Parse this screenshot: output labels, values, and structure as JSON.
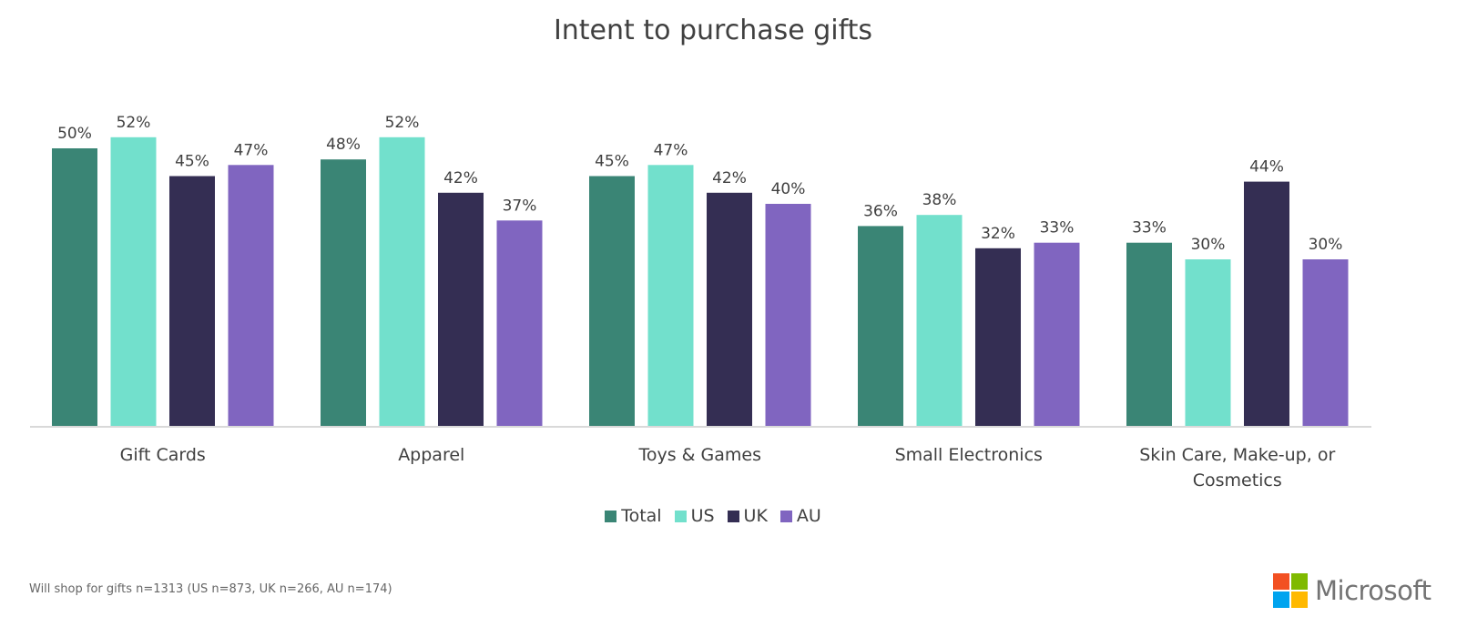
{
  "chart_data": {
    "type": "bar",
    "title": "Intent to purchase gifts",
    "xlabel": "",
    "ylabel": "",
    "ylim": [
      0,
      52
    ],
    "grid": false,
    "legend_position": "bottom-center",
    "categories": [
      "Gift Cards",
      "Apparel",
      "Toys & Games",
      "Small Electronics",
      "Skin Care, Make-up, or Cosmetics"
    ],
    "category_lines": [
      [
        "Gift Cards"
      ],
      [
        "Apparel"
      ],
      [
        "Toys & Games"
      ],
      [
        "Small Electronics"
      ],
      [
        "Skin Care, Make-up, or",
        "Cosmetics"
      ]
    ],
    "series": [
      {
        "name": "Total",
        "color": "#3a8575",
        "values": [
          50,
          48,
          45,
          36,
          33
        ]
      },
      {
        "name": "US",
        "color": "#72e0cc",
        "values": [
          52,
          52,
          47,
          38,
          30
        ]
      },
      {
        "name": "UK",
        "color": "#342e53",
        "values": [
          45,
          42,
          42,
          32,
          44
        ]
      },
      {
        "name": "AU",
        "color": "#8065c0",
        "values": [
          47,
          37,
          40,
          33,
          30
        ]
      }
    ],
    "value_suffix": "%"
  },
  "footnote": "Will shop for gifts n=1313 (US n=873, UK n=266, AU n=174)",
  "logo": {
    "text": "Microsoft",
    "colors": [
      "#f25022",
      "#7fba00",
      "#00a4ef",
      "#ffb900"
    ]
  }
}
